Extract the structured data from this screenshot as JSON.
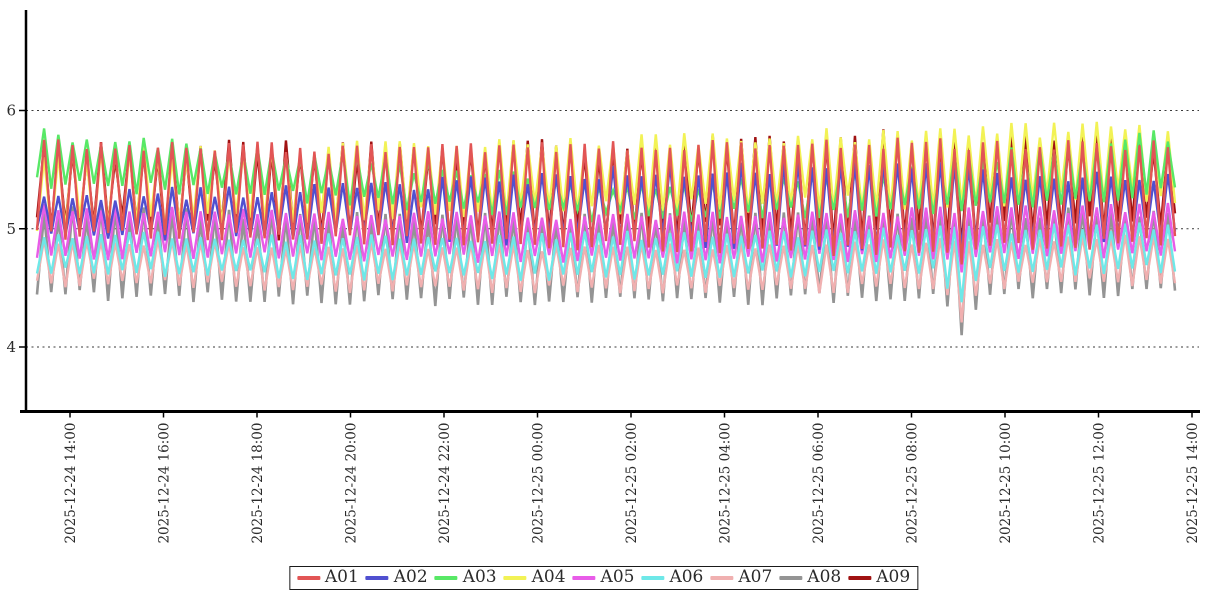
{
  "chart_data": {
    "type": "line",
    "title": "",
    "xlabel": "",
    "ylabel": "",
    "grid": "horizontal dashed gridlines at y = 4, 5, 6",
    "legend_position": "bottom-center",
    "ylim": [
      3.45,
      6.85
    ],
    "y_ticks": [
      6,
      5,
      4
    ],
    "y_tick_labels": [
      "6",
      "5",
      "4"
    ],
    "x_tick_labels": [
      "2025-12-24 14:00",
      "2025-12-24 16:00",
      "2025-12-24 18:00",
      "2025-12-24 20:00",
      "2025-12-24 22:00",
      "2025-12-25 00:00",
      "2025-12-25 02:00",
      "2025-12-25 04:00",
      "2025-12-25 06:00",
      "2025-12-25 08:00",
      "2025-12-25 10:00",
      "2025-12-25 12:00",
      "2025-12-25 14:00"
    ],
    "x_range_note": "data spans approx 2025-12-24 13:18 to 2025-12-25 13:38; each series oscillates with ~18 min period between its low and high envelope",
    "cycles": 80,
    "samples_per_series": 161,
    "anomaly": {
      "x_fraction": 0.8125,
      "note": "sharp downward spike of all series (deepest in A06/A07/A08, to ~4.2) near 2025-12-25 08:15"
    },
    "series": [
      {
        "name": "A01",
        "color": "#e25555",
        "env_high": [
          5.72,
          5.68,
          5.7,
          5.72,
          5.7
        ],
        "env_low": [
          4.96,
          4.92,
          4.86,
          4.8,
          4.9
        ],
        "jitter": 0.05,
        "anomaly_dip": 0.1,
        "width": 2.4
      },
      {
        "name": "A02",
        "color": "#5050d0",
        "env_high": [
          5.28,
          5.32,
          5.48,
          5.52,
          5.42
        ],
        "env_low": [
          4.96,
          4.94,
          4.9,
          4.86,
          4.94
        ],
        "jitter": 0.06,
        "anomaly_dip": 0.1,
        "width": 2.4
      },
      {
        "name": "A03",
        "color": "#58e866",
        "env_high": [
          5.8,
          5.62,
          5.33,
          5.5,
          5.8
        ],
        "env_low": [
          5.38,
          5.26,
          5.1,
          5.15,
          5.3
        ],
        "jitter": 0.06,
        "anomaly_dip": 0.06,
        "width": 2.4
      },
      {
        "name": "A04",
        "color": "#f2f255",
        "env_high": [
          5.62,
          5.7,
          5.72,
          5.8,
          5.86
        ],
        "env_low": [
          5.02,
          5.1,
          5.18,
          5.22,
          5.28
        ],
        "jitter": 0.07,
        "anomaly_dip": 0.06,
        "width": 2.4
      },
      {
        "name": "A05",
        "color": "#e85ce8",
        "env_high": [
          5.18,
          5.12,
          5.1,
          5.14,
          5.18
        ],
        "env_low": [
          4.78,
          4.76,
          4.74,
          4.76,
          4.8
        ],
        "jitter": 0.04,
        "anomaly_dip": 0.1,
        "width": 2.4
      },
      {
        "name": "A06",
        "color": "#6ee8e8",
        "env_high": [
          4.96,
          4.92,
          4.94,
          4.98,
          5.02
        ],
        "env_low": [
          4.64,
          4.6,
          4.6,
          4.62,
          4.66
        ],
        "jitter": 0.04,
        "anomaly_dip": 0.28,
        "width": 2.4
      },
      {
        "name": "A07",
        "color": "#f0b0b0",
        "env_high": [
          4.9,
          4.86,
          4.84,
          4.88,
          4.92
        ],
        "env_low": [
          4.55,
          4.5,
          4.48,
          4.5,
          4.56
        ],
        "jitter": 0.04,
        "anomaly_dip": 0.3,
        "width": 2.4
      },
      {
        "name": "A08",
        "color": "#949494",
        "env_high": [
          5.15,
          5.1,
          5.08,
          5.12,
          5.15
        ],
        "env_low": [
          4.45,
          4.4,
          4.38,
          4.42,
          4.48
        ],
        "jitter": 0.05,
        "anomaly_dip": 0.3,
        "width": 2.6
      },
      {
        "name": "A09",
        "color": "#a01212",
        "env_high": [
          5.68,
          5.66,
          5.68,
          5.76,
          5.72
        ],
        "env_low": [
          5.02,
          4.98,
          4.96,
          4.98,
          5.04
        ],
        "jitter": 0.09,
        "anomaly_dip": 0.1,
        "width": 2.4
      }
    ],
    "axis_color": "#000000",
    "tick_label_color": "#2b2b2b"
  }
}
